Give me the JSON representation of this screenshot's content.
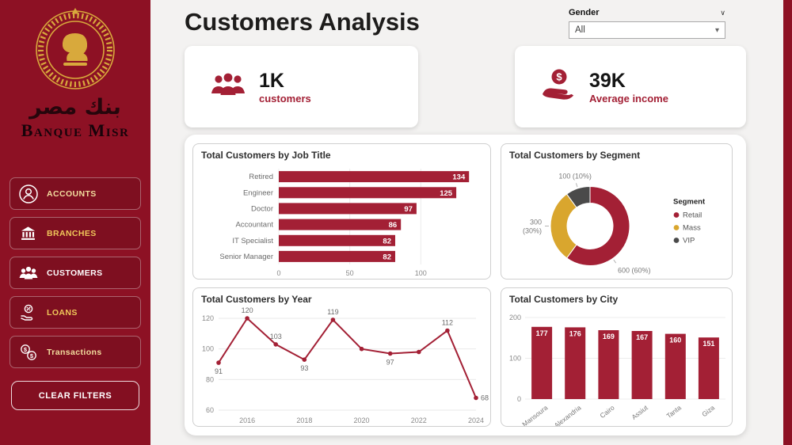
{
  "colors": {
    "brand": "#8D1124",
    "accent": "#A32035",
    "gold": "#D9A62E",
    "vip_gray": "#4A4A4A",
    "logo_gold": "#D8A93C"
  },
  "sidebar": {
    "brand_arabic": "بنك مصر",
    "brand_latin": "Banque Misr",
    "items": [
      {
        "label": "ACCOUNTS",
        "icon": "user",
        "label_color": "#F2DD9E"
      },
      {
        "label": "BRANCHES",
        "icon": "bank",
        "label_color": "#EFC75A"
      },
      {
        "label": "CUSTOMERS",
        "icon": "users",
        "label_color": "#FFFFFF"
      },
      {
        "label": "LOANS",
        "icon": "hand-percent",
        "label_color": "#EFC75A"
      },
      {
        "label": "Transactions",
        "icon": "money-exchange",
        "label_color": "#F2DD9E"
      }
    ],
    "clear_filters_label": "CLEAR FILTERS"
  },
  "header": {
    "title": "Customers Analysis",
    "gender_filter": {
      "label": "Gender",
      "value": "All"
    }
  },
  "kpis": [
    {
      "value": "1K",
      "label": "customers",
      "icon": "people-group"
    },
    {
      "value": "39K",
      "label": "Average income",
      "icon": "dollar-hand"
    }
  ],
  "chart_data": [
    {
      "type": "bar",
      "orientation": "horizontal",
      "title": "Total Customers by Job Title",
      "categories": [
        "Retired",
        "Engineer",
        "Doctor",
        "Accountant",
        "IT Specialist",
        "Senior Manager"
      ],
      "values": [
        134,
        125,
        97,
        86,
        82,
        82
      ],
      "xlim": [
        0,
        140
      ],
      "xticks": [
        0,
        50,
        100
      ],
      "bar_color": "#A32035",
      "value_labels": "inside-end"
    },
    {
      "type": "pie",
      "donut": true,
      "title": "Total Customers by Segment",
      "legend_title": "Segment",
      "legend_position": "right",
      "slices": [
        {
          "label": "Retail",
          "value": 600,
          "callout": "600 (60%)",
          "color": "#A32035",
          "callout_angle": 55
        },
        {
          "label": "Mass",
          "value": 300,
          "callout": "300 (30%)",
          "color": "#D9A62E",
          "callout_angle": 180,
          "callout_two_line": true
        },
        {
          "label": "VIP",
          "value": 100,
          "callout": "100 (10%)",
          "color": "#4A4A4A",
          "callout_angle": 252
        }
      ]
    },
    {
      "type": "line",
      "title": "Total Customers by Year",
      "x": [
        2015,
        2016,
        2017,
        2018,
        2019,
        2020,
        2021,
        2022,
        2023,
        2024
      ],
      "values": [
        91,
        120,
        103,
        93,
        119,
        100,
        97,
        98,
        112,
        68
      ],
      "labels": [
        "91",
        "120",
        "103",
        "93",
        "119",
        null,
        "97",
        null,
        "112",
        "68"
      ],
      "label_side": [
        "below",
        "above",
        "above",
        "below",
        "above",
        null,
        "below",
        null,
        "above",
        "right"
      ],
      "ylim": [
        60,
        120
      ],
      "yticks": [
        60,
        80,
        100,
        120
      ],
      "xticks": [
        2016,
        2018,
        2020,
        2022,
        2024
      ],
      "line_color": "#A32035",
      "grid": true
    },
    {
      "type": "bar",
      "orientation": "vertical",
      "title": "Total Customers by City",
      "categories": [
        "Mansoura",
        "Alexandria",
        "Cairo",
        "Assiut",
        "Tanta",
        "Giza"
      ],
      "values": [
        177,
        176,
        169,
        167,
        160,
        151
      ],
      "ylim": [
        0,
        200
      ],
      "yticks": [
        0,
        100,
        200
      ],
      "bar_color": "#A32035",
      "value_labels": "inside-top"
    }
  ]
}
